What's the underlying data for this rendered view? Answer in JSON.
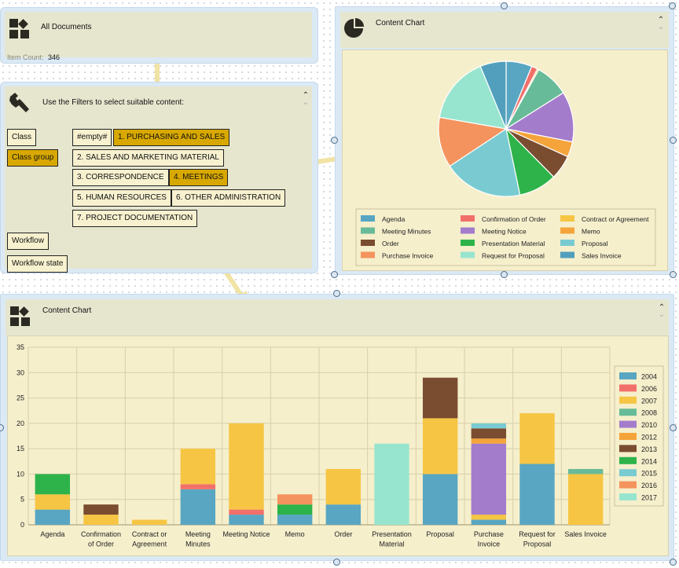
{
  "all_documents": {
    "title": "All Documents",
    "item_count_label": "Item Count:",
    "item_count": "346"
  },
  "filters": {
    "title": "Use the Filters to select suitable content:",
    "labels": {
      "class": "Class",
      "class_group": "Class group",
      "workflow": "Workflow",
      "workflow_state": "Workflow state"
    },
    "options": [
      {
        "label": "#empty#",
        "selected": false
      },
      {
        "label": "1. PURCHASING AND SALES",
        "selected": true
      },
      {
        "label": "2. SALES AND MARKETING MATERIAL",
        "selected": false
      },
      {
        "label": "3. CORRESPONDENCE",
        "selected": false
      },
      {
        "label": "4. MEETINGS",
        "selected": true
      },
      {
        "label": "5. HUMAN RESOURCES",
        "selected": false
      },
      {
        "label": "6. OTHER ADMINISTRATION",
        "selected": false
      },
      {
        "label": "7. PROJECT DOCUMENTATION",
        "selected": false
      }
    ]
  },
  "pie_panel": {
    "title": "Content Chart"
  },
  "bar_panel": {
    "title": "Content Chart"
  },
  "colors": {
    "Agenda": "#58a6c2",
    "Confirmation of Order": "#f2706a",
    "Contract or Agreement": "#f6c544",
    "Meeting Minutes": "#68bb98",
    "Meeting Notice": "#a47ccc",
    "Memo": "#f4a43b",
    "Order": "#7a4c30",
    "Presentation Material": "#2db34a",
    "Proposal": "#79cbd1",
    "Purchase Invoice": "#f4935d",
    "Request for Proposal": "#98e5cf",
    "Sales Invoice": "#519fbc"
  },
  "chart_data": [
    {
      "type": "pie",
      "title": "Content Chart",
      "legend": [
        "Agenda",
        "Confirmation of Order",
        "Contract or Agreement",
        "Meeting Minutes",
        "Meeting Notice",
        "Memo",
        "Order",
        "Presentation Material",
        "Proposal",
        "Purchase Invoice",
        "Request for Proposal",
        "Sales Invoice"
      ],
      "slices": [
        {
          "label": "Agenda",
          "value": 17
        },
        {
          "label": "Confirmation of Order",
          "value": 4
        },
        {
          "label": "Contract or Agreement",
          "value": 1
        },
        {
          "label": "Meeting Minutes",
          "value": 22
        },
        {
          "label": "Meeting Notice",
          "value": 33
        },
        {
          "label": "Memo",
          "value": 10
        },
        {
          "label": "Order",
          "value": 16
        },
        {
          "label": "Presentation Material",
          "value": 25
        },
        {
          "label": "Proposal",
          "value": 52
        },
        {
          "label": "Purchase Invoice",
          "value": 33
        },
        {
          "label": "Request for Proposal",
          "value": 44
        },
        {
          "label": "Sales Invoice",
          "value": 17
        }
      ]
    },
    {
      "type": "bar",
      "stacked": true,
      "title": "Content Chart",
      "categories": [
        "Agenda",
        "Confirmation of Order",
        "Contract or Agreement",
        "Meeting Minutes",
        "Meeting Notice",
        "Memo",
        "Order",
        "Presentation Material",
        "Proposal",
        "Purchase Invoice",
        "Request for Proposal",
        "Sales Invoice"
      ],
      "ylim": [
        0,
        35
      ],
      "yticks": [
        0,
        5,
        10,
        15,
        20,
        25,
        30,
        35
      ],
      "series": [
        {
          "name": "2004",
          "color": "#58a6c2",
          "values": [
            3,
            0,
            0,
            7,
            2,
            2,
            4,
            0,
            10,
            1,
            12,
            0
          ]
        },
        {
          "name": "2006",
          "color": "#f2706a",
          "values": [
            0,
            0,
            0,
            1,
            1,
            0,
            0,
            0,
            0,
            0,
            0,
            0
          ]
        },
        {
          "name": "2007",
          "color": "#f6c544",
          "values": [
            3,
            2,
            1,
            7,
            17,
            0,
            7,
            0,
            11,
            1,
            10,
            10
          ]
        },
        {
          "name": "2008",
          "color": "#68bb98",
          "values": [
            0,
            0,
            0,
            0,
            0,
            0,
            0,
            0,
            0,
            0,
            0,
            1
          ]
        },
        {
          "name": "2010",
          "color": "#a47ccc",
          "values": [
            0,
            0,
            0,
            0,
            0,
            0,
            0,
            0,
            0,
            14,
            0,
            0
          ]
        },
        {
          "name": "2012",
          "color": "#f4a43b",
          "values": [
            0,
            0,
            0,
            0,
            0,
            0,
            0,
            0,
            0,
            1,
            0,
            0
          ]
        },
        {
          "name": "2013",
          "color": "#7a4c30",
          "values": [
            0,
            2,
            0,
            0,
            0,
            0,
            0,
            0,
            8,
            2,
            0,
            0
          ]
        },
        {
          "name": "2014",
          "color": "#2db34a",
          "values": [
            4,
            0,
            0,
            0,
            0,
            2,
            0,
            0,
            0,
            0,
            0,
            0
          ]
        },
        {
          "name": "2015",
          "color": "#79cbd1",
          "values": [
            0,
            0,
            0,
            0,
            0,
            0,
            0,
            0,
            0,
            1,
            0,
            0
          ]
        },
        {
          "name": "2016",
          "color": "#f4935d",
          "values": [
            0,
            0,
            0,
            0,
            0,
            2,
            0,
            0,
            0,
            0,
            0,
            0
          ]
        },
        {
          "name": "2017",
          "color": "#98e5cf",
          "values": [
            0,
            0,
            0,
            0,
            0,
            0,
            0,
            16,
            0,
            0,
            0,
            0
          ]
        }
      ]
    }
  ]
}
